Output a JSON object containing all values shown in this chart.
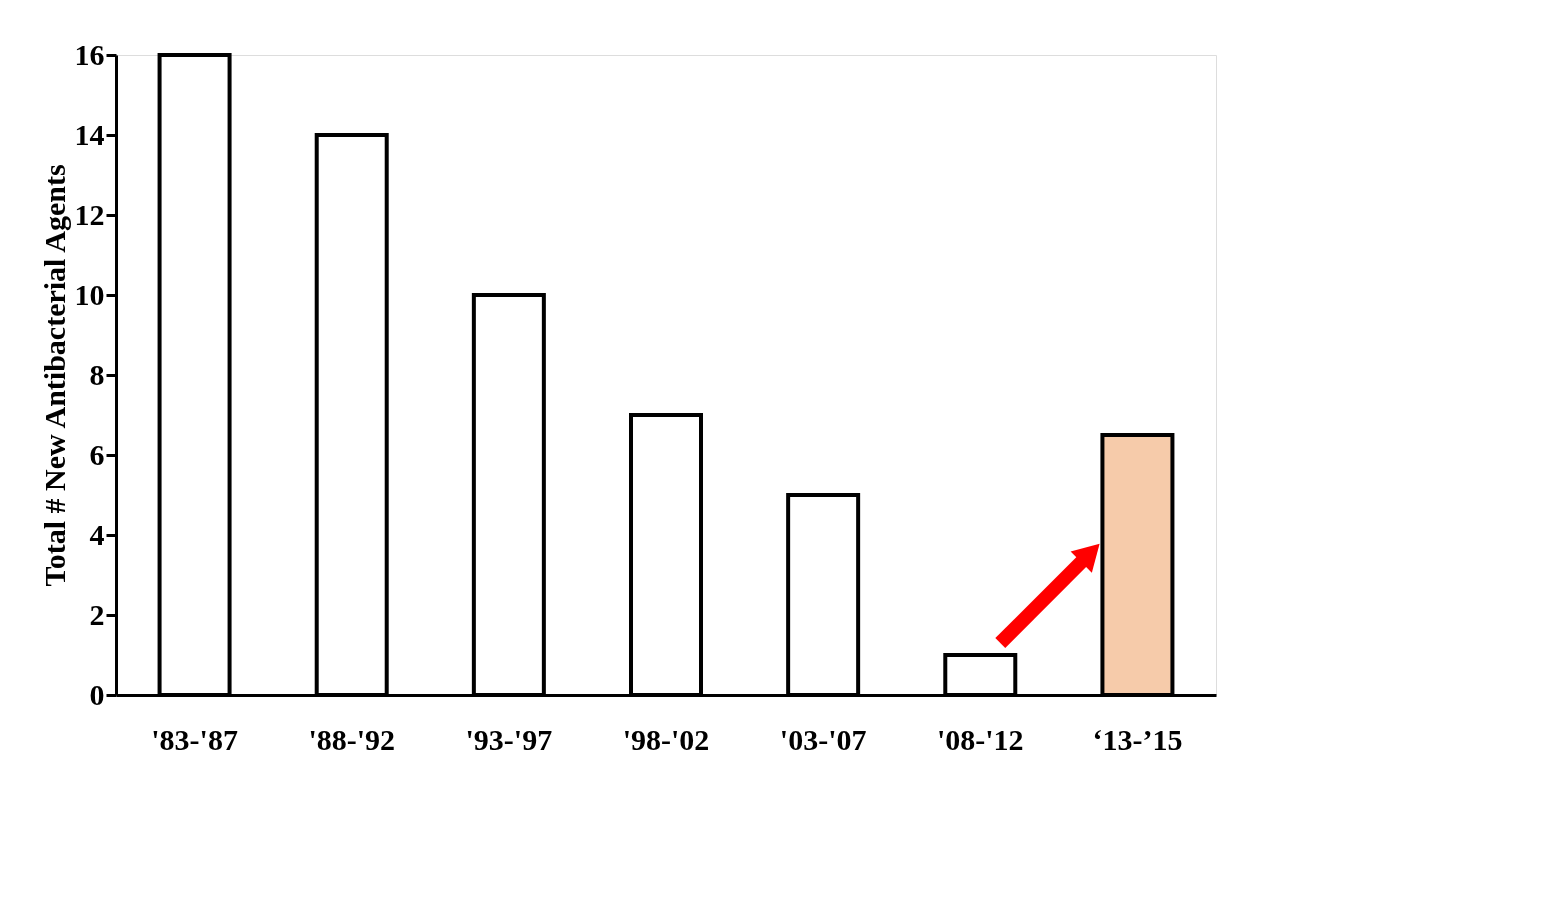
{
  "chart_data": {
    "type": "bar",
    "ylabel": "Total # New Antibacterial Agents",
    "categories": [
      "'83-'87",
      "'88-'92",
      "'93-'97",
      "'98-'02",
      "'03-'07",
      "'08-'12",
      "‘13-’15"
    ],
    "values": [
      16,
      14,
      10,
      7,
      5,
      1,
      6.5
    ],
    "colors": [
      "#ffffff",
      "#ffffff",
      "#ffffff",
      "#ffffff",
      "#ffffff",
      "#ffffff",
      "#f6cbaa"
    ],
    "ylim": [
      0,
      16
    ],
    "yticks": [
      0,
      2,
      4,
      6,
      8,
      10,
      12,
      14,
      16
    ],
    "grid": false
  }
}
